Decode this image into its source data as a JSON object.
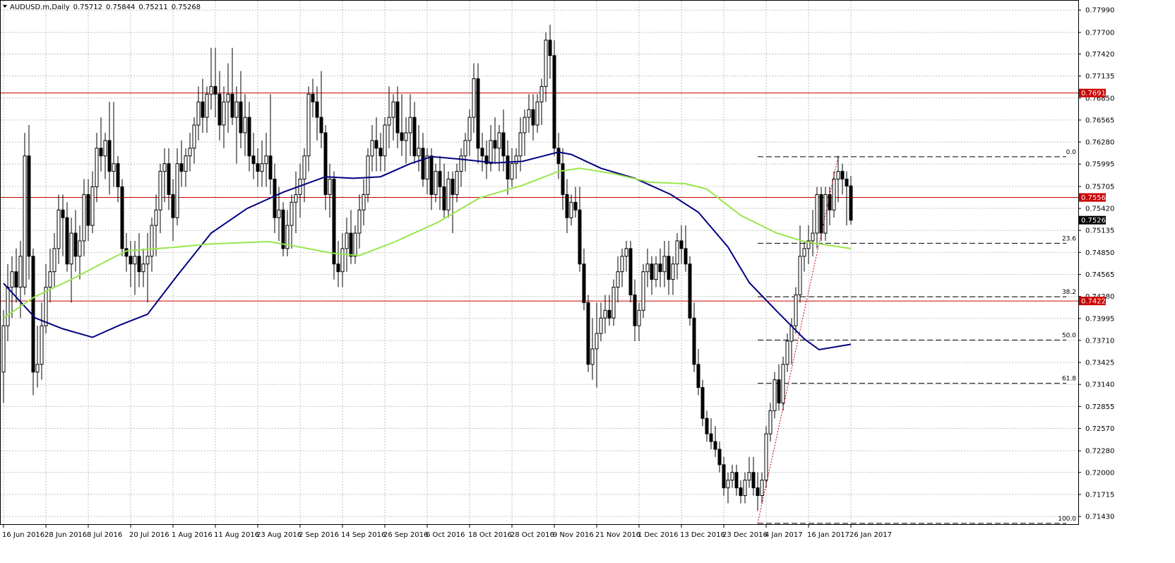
{
  "chart_data": {
    "type": "candlestick",
    "title": "AUDUSD.m,Daily",
    "categories": [
      "16 Jun 2016",
      null,
      null,
      null,
      null,
      null,
      null,
      null,
      null,
      null,
      "28 Jun 2016",
      null,
      null,
      null,
      null,
      null,
      null,
      null,
      null,
      null,
      "8 Jul 2016",
      null,
      null,
      null,
      null,
      null,
      null,
      null,
      null,
      null,
      "20 Jul 2016",
      null,
      null,
      null,
      null,
      null,
      null,
      null,
      null,
      null,
      "1 Aug 2016",
      null,
      null,
      null,
      null,
      null,
      null,
      null,
      null,
      null,
      "11 Aug 2016",
      null,
      null,
      null,
      null,
      null,
      null,
      null,
      null,
      null,
      "23 Aug 2016",
      null,
      null,
      null,
      null,
      null,
      null,
      null,
      null,
      null,
      "2 Sep 2016",
      null,
      null,
      null,
      null,
      null,
      null,
      null,
      null,
      null,
      "14 Sep 2016",
      null,
      null,
      null,
      null,
      null,
      null,
      null,
      null,
      null,
      "26 Sep 2016",
      null,
      null,
      null,
      null,
      null,
      null,
      null,
      null,
      null,
      "6 Oct 2016",
      null,
      null,
      null,
      null,
      null,
      null,
      null,
      null,
      null,
      "18 Oct 2016",
      null,
      null,
      null,
      null,
      null,
      null,
      null,
      null,
      null,
      "28 Oct 2016",
      null,
      null,
      null,
      null,
      null,
      null,
      null,
      null,
      null,
      "9 Nov 2016",
      null,
      null,
      null,
      null,
      null,
      null,
      null,
      null,
      null,
      "21 Nov 2016",
      null,
      null,
      null,
      null,
      null,
      null,
      null,
      null,
      null,
      "1 Dec 2016",
      null,
      null,
      null,
      null,
      null,
      null,
      null,
      null,
      null,
      "13 Dec 2016",
      null,
      null,
      null,
      null,
      null,
      null,
      null,
      null,
      null,
      "23 Dec 2016",
      null,
      null,
      null,
      null,
      null,
      null,
      null,
      null,
      null,
      "4 Jan 2017",
      null,
      null,
      null,
      null,
      null,
      null,
      null,
      null,
      null,
      "16 Jan 2017",
      null,
      null,
      null,
      null,
      null,
      null,
      null,
      null,
      null,
      "26 Jan 2017"
    ],
    "open": [
      0.733,
      0.739,
      0.744,
      0.746,
      0.744,
      0.744,
      0.761,
      0.748,
      0.733,
      0.734,
      0.739,
      0.744,
      0.746,
      0.749,
      0.754,
      0.753,
      0.747,
      0.751,
      0.748,
      0.75,
      0.756,
      0.752,
      0.757,
      0.762,
      0.761,
      0.763,
      0.759,
      0.76,
      0.757,
      0.749,
      0.748,
      0.747,
      0.748,
      0.746,
      0.747,
      0.748,
      0.752,
      0.754,
      0.759,
      0.76,
      0.756,
      0.753,
      0.76,
      0.759,
      0.761,
      0.762,
      0.765,
      0.768,
      0.766,
      0.769,
      0.77,
      0.769,
      0.765,
      0.768,
      0.769,
      0.766,
      0.768,
      0.764,
      0.766,
      0.761,
      0.76,
      0.759,
      0.76,
      0.761,
      0.758,
      0.753,
      0.754,
      0.749,
      0.752,
      0.755,
      0.756,
      0.758,
      0.761,
      0.769,
      0.768,
      0.766,
      0.764,
      0.756,
      0.758,
      0.747,
      0.746,
      0.749,
      0.751,
      0.748,
      0.751,
      0.754,
      0.756,
      0.761,
      0.763,
      0.762,
      0.761,
      0.765,
      0.766,
      0.768,
      0.764,
      0.763,
      0.764,
      0.766,
      0.761,
      0.762,
      0.758,
      0.761,
      0.756,
      0.759,
      0.757,
      0.754,
      0.758,
      0.756,
      0.759,
      0.761,
      0.763,
      0.766,
      0.771,
      0.762,
      0.761,
      0.76,
      0.763,
      0.762,
      0.764,
      0.761,
      0.758,
      0.76,
      0.761,
      0.764,
      0.766,
      0.767,
      0.765,
      0.768,
      0.77,
      0.776,
      0.774,
      0.762,
      0.76,
      0.756,
      0.753,
      0.755,
      0.754,
      0.747,
      0.742,
      0.734,
      0.736,
      0.738,
      0.74,
      0.741,
      0.74,
      0.744,
      0.746,
      0.748,
      0.749,
      0.743,
      0.739,
      0.741,
      0.746,
      0.747,
      0.745,
      0.747,
      0.746,
      0.748,
      0.745,
      0.747,
      0.75,
      0.749,
      0.747,
      0.74,
      0.734,
      0.731,
      0.727,
      0.725,
      0.724,
      0.723,
      0.721,
      0.718,
      0.719,
      0.72,
      0.718,
      0.717,
      0.719,
      0.72,
      0.718,
      0.717,
      0.719,
      0.725,
      0.728,
      0.732,
      0.729,
      0.734,
      0.737,
      0.739,
      0.743,
      0.748,
      0.749,
      0.75,
      0.751,
      0.756,
      0.751,
      0.756,
      0.754,
      0.758,
      0.759,
      0.758,
      0.75712
    ],
    "high": [
      0.741,
      0.747,
      0.748,
      0.749,
      0.75,
      0.764,
      0.765,
      0.749,
      0.739,
      0.742,
      0.747,
      0.749,
      0.751,
      0.756,
      0.756,
      0.755,
      0.753,
      0.754,
      0.752,
      0.758,
      0.758,
      0.759,
      0.764,
      0.766,
      0.764,
      0.768,
      0.768,
      0.761,
      0.758,
      0.751,
      0.75,
      0.75,
      0.751,
      0.749,
      0.751,
      0.753,
      0.756,
      0.76,
      0.762,
      0.762,
      0.758,
      0.762,
      0.763,
      0.762,
      0.764,
      0.766,
      0.77,
      0.771,
      0.77,
      0.775,
      0.775,
      0.772,
      0.77,
      0.773,
      0.775,
      0.77,
      0.772,
      0.769,
      0.768,
      0.764,
      0.762,
      0.763,
      0.764,
      0.769,
      0.76,
      0.757,
      0.755,
      0.754,
      0.756,
      0.759,
      0.76,
      0.762,
      0.77,
      0.771,
      0.77,
      0.772,
      0.765,
      0.76,
      0.759,
      0.75,
      0.751,
      0.753,
      0.754,
      0.752,
      0.756,
      0.758,
      0.762,
      0.765,
      0.766,
      0.764,
      0.766,
      0.77,
      0.769,
      0.77,
      0.769,
      0.766,
      0.769,
      0.768,
      0.765,
      0.764,
      0.762,
      0.762,
      0.76,
      0.761,
      0.76,
      0.759,
      0.759,
      0.76,
      0.762,
      0.764,
      0.767,
      0.773,
      0.773,
      0.764,
      0.763,
      0.765,
      0.766,
      0.765,
      0.767,
      0.763,
      0.762,
      0.762,
      0.766,
      0.767,
      0.769,
      0.769,
      0.769,
      0.771,
      0.777,
      0.778,
      0.776,
      0.764,
      0.762,
      0.758,
      0.756,
      0.757,
      0.757,
      0.749,
      0.743,
      0.74,
      0.742,
      0.742,
      0.743,
      0.743,
      0.745,
      0.748,
      0.749,
      0.75,
      0.75,
      0.745,
      0.742,
      0.747,
      0.749,
      0.748,
      0.748,
      0.749,
      0.75,
      0.75,
      0.748,
      0.751,
      0.752,
      0.752,
      0.748,
      0.742,
      0.736,
      0.732,
      0.728,
      0.727,
      0.726,
      0.724,
      0.722,
      0.72,
      0.721,
      0.721,
      0.719,
      0.72,
      0.722,
      0.722,
      0.72,
      0.72,
      0.726,
      0.729,
      0.733,
      0.734,
      0.735,
      0.738,
      0.74,
      0.744,
      0.752,
      0.75,
      0.752,
      0.754,
      0.757,
      0.757,
      0.757,
      0.757,
      0.759,
      0.761,
      0.76,
      0.759,
      0.75844
    ],
    "low": [
      0.729,
      0.737,
      0.74,
      0.742,
      0.74,
      0.743,
      0.745,
      0.73,
      0.731,
      0.732,
      0.738,
      0.742,
      0.744,
      0.747,
      0.748,
      0.746,
      0.742,
      0.746,
      0.745,
      0.748,
      0.75,
      0.751,
      0.755,
      0.759,
      0.758,
      0.756,
      0.757,
      0.755,
      0.748,
      0.746,
      0.744,
      0.743,
      0.744,
      0.744,
      0.742,
      0.746,
      0.748,
      0.751,
      0.755,
      0.754,
      0.75,
      0.752,
      0.757,
      0.757,
      0.759,
      0.76,
      0.763,
      0.764,
      0.764,
      0.767,
      0.766,
      0.763,
      0.762,
      0.764,
      0.765,
      0.76,
      0.762,
      0.761,
      0.759,
      0.758,
      0.757,
      0.757,
      0.757,
      0.756,
      0.751,
      0.75,
      0.748,
      0.748,
      0.749,
      0.751,
      0.753,
      0.755,
      0.759,
      0.766,
      0.763,
      0.762,
      0.754,
      0.753,
      0.745,
      0.744,
      0.744,
      0.746,
      0.747,
      0.747,
      0.749,
      0.752,
      0.755,
      0.759,
      0.759,
      0.759,
      0.759,
      0.762,
      0.763,
      0.762,
      0.761,
      0.76,
      0.761,
      0.76,
      0.759,
      0.757,
      0.756,
      0.754,
      0.755,
      0.754,
      0.753,
      0.753,
      0.751,
      0.755,
      0.757,
      0.759,
      0.761,
      0.764,
      0.76,
      0.759,
      0.758,
      0.759,
      0.76,
      0.759,
      0.759,
      0.756,
      0.757,
      0.758,
      0.759,
      0.761,
      0.764,
      0.763,
      0.764,
      0.765,
      0.768,
      0.771,
      0.761,
      0.758,
      0.754,
      0.751,
      0.752,
      0.753,
      0.746,
      0.741,
      0.733,
      0.732,
      0.731,
      0.737,
      0.738,
      0.739,
      0.739,
      0.742,
      0.744,
      0.746,
      0.742,
      0.737,
      0.737,
      0.74,
      0.744,
      0.743,
      0.744,
      0.744,
      0.744,
      0.743,
      0.743,
      0.745,
      0.747,
      0.746,
      0.739,
      0.733,
      0.73,
      0.726,
      0.724,
      0.723,
      0.722,
      0.72,
      0.717,
      0.716,
      0.718,
      0.717,
      0.716,
      0.716,
      0.718,
      0.717,
      0.715,
      0.716,
      0.718,
      0.724,
      0.727,
      0.728,
      0.728,
      0.733,
      0.734,
      0.738,
      0.742,
      0.746,
      0.747,
      0.748,
      0.749,
      0.75,
      0.75,
      0.752,
      0.753,
      0.755,
      0.756,
      0.752,
      0.75211
    ],
    "close": [
      0.739,
      0.744,
      0.746,
      0.744,
      0.748,
      0.761,
      0.748,
      0.733,
      0.734,
      0.739,
      0.744,
      0.746,
      0.749,
      0.754,
      0.753,
      0.747,
      0.751,
      0.748,
      0.75,
      0.756,
      0.752,
      0.757,
      0.762,
      0.761,
      0.763,
      0.759,
      0.76,
      0.757,
      0.749,
      0.748,
      0.747,
      0.748,
      0.746,
      0.747,
      0.748,
      0.752,
      0.754,
      0.759,
      0.76,
      0.756,
      0.753,
      0.76,
      0.759,
      0.761,
      0.762,
      0.765,
      0.768,
      0.766,
      0.769,
      0.77,
      0.769,
      0.765,
      0.768,
      0.769,
      0.766,
      0.768,
      0.764,
      0.766,
      0.761,
      0.76,
      0.759,
      0.76,
      0.761,
      0.758,
      0.753,
      0.754,
      0.749,
      0.752,
      0.755,
      0.756,
      0.758,
      0.761,
      0.769,
      0.768,
      0.766,
      0.764,
      0.756,
      0.758,
      0.747,
      0.746,
      0.749,
      0.751,
      0.748,
      0.751,
      0.754,
      0.756,
      0.761,
      0.763,
      0.762,
      0.761,
      0.765,
      0.766,
      0.768,
      0.764,
      0.763,
      0.764,
      0.766,
      0.761,
      0.762,
      0.758,
      0.761,
      0.756,
      0.759,
      0.757,
      0.754,
      0.758,
      0.756,
      0.759,
      0.761,
      0.763,
      0.766,
      0.771,
      0.762,
      0.761,
      0.76,
      0.763,
      0.762,
      0.764,
      0.761,
      0.758,
      0.76,
      0.761,
      0.764,
      0.766,
      0.767,
      0.765,
      0.768,
      0.77,
      0.776,
      0.774,
      0.762,
      0.76,
      0.756,
      0.753,
      0.755,
      0.754,
      0.747,
      0.742,
      0.734,
      0.736,
      0.738,
      0.74,
      0.741,
      0.74,
      0.744,
      0.746,
      0.748,
      0.749,
      0.743,
      0.739,
      0.741,
      0.746,
      0.747,
      0.745,
      0.747,
      0.746,
      0.748,
      0.745,
      0.747,
      0.75,
      0.749,
      0.747,
      0.74,
      0.734,
      0.731,
      0.727,
      0.725,
      0.724,
      0.723,
      0.721,
      0.718,
      0.719,
      0.72,
      0.718,
      0.717,
      0.719,
      0.72,
      0.718,
      0.717,
      0.719,
      0.725,
      0.728,
      0.732,
      0.729,
      0.734,
      0.737,
      0.739,
      0.743,
      0.748,
      0.749,
      0.75,
      0.751,
      0.756,
      0.751,
      0.756,
      0.754,
      0.758,
      0.759,
      0.758,
      0.7571,
      0.75268
    ],
    "ylim": [
      0.7133,
      0.7812
    ],
    "yticks": [
      {
        "value": 0.7799,
        "label": "0.77990"
      },
      {
        "value": 0.777,
        "label": "0.77700"
      },
      {
        "value": 0.7742,
        "label": "0.77420"
      },
      0.77135,
      {
        "value": 0.7685,
        "label": "0.76850"
      },
      0.76565,
      {
        "value": 0.7628,
        "label": "0.76280"
      },
      0.75995,
      0.75705,
      {
        "value": 0.7542,
        "label": "0.75420"
      },
      0.75135,
      {
        "value": 0.7485,
        "label": "0.74850"
      },
      0.74565,
      {
        "value": 0.7428,
        "label": "0.74280"
      },
      0.73995,
      {
        "value": 0.7371,
        "label": "0.73710"
      },
      0.73425,
      {
        "value": 0.7314,
        "label": "0.73140"
      },
      0.72855,
      {
        "value": 0.7257,
        "label": "0.72570"
      },
      {
        "value": 0.7228,
        "label": "0.72280"
      },
      {
        "value": 0.72,
        "label": "0.72000"
      },
      0.71715,
      {
        "value": 0.7143,
        "label": "0.71430"
      }
    ],
    "grid": true,
    "up_color": "#ffffff",
    "down_color": "#000000",
    "moving_averages": [
      {
        "color": "#000080",
        "x": [
          0,
          7.5,
          14,
          21,
          27.5,
          34,
          41,
          49,
          57.5,
          66,
          76,
          82.5,
          89,
          96,
          101,
          107.5,
          116,
          122.5,
          131,
          134,
          141,
          149,
          157.5,
          164,
          171,
          176,
          182.5,
          189,
          192.5,
          200
        ],
        "values": [
          0.7445,
          0.74,
          0.7386,
          0.7375,
          0.7391,
          0.7405,
          0.7455,
          0.751,
          0.7542,
          0.7563,
          0.7583,
          0.7581,
          0.7583,
          0.76,
          0.7609,
          0.7606,
          0.7601,
          0.7603,
          0.7615,
          0.7612,
          0.7594,
          0.7581,
          0.756,
          0.7537,
          0.7492,
          0.7446,
          0.7409,
          0.7373,
          0.7359,
          0.7366
        ]
      },
      {
        "color": "#99e64d",
        "x": [
          0,
          7.5,
          16,
          24,
          29,
          41,
          49,
          62.5,
          69,
          77.5,
          84,
          92.5,
          102.5,
          112.5,
          122.5,
          131,
          136,
          144,
          152.5,
          161,
          166,
          174,
          182.5,
          189,
          200
        ],
        "values": [
          0.74,
          0.7428,
          0.745,
          0.7473,
          0.7487,
          0.7492,
          0.7496,
          0.7499,
          0.7493,
          0.7484,
          0.7481,
          0.7499,
          0.7524,
          0.7556,
          0.7572,
          0.759,
          0.7594,
          0.7587,
          0.7576,
          0.7574,
          0.7567,
          0.7533,
          0.751,
          0.7499,
          0.749
        ]
      }
    ],
    "levels": [
      {
        "value": 0.76915,
        "color": "#cc0000"
      },
      {
        "value": 0.75562,
        "color": "#cc0000"
      },
      {
        "value": 0.74221,
        "color": "#cc0000"
      }
    ],
    "fibonacci": {
      "low": 0.7134,
      "high": 0.7609,
      "start": 178,
      "end": 197,
      "color": "#000000",
      "trend_color": "#cc0000",
      "levels": [
        {
          "value": 0,
          "label": "0.0"
        },
        23.6,
        38.2,
        {
          "value": 50,
          "label": "50.0"
        },
        61.8,
        {
          "value": 100,
          "label": "100.0"
        }
      ]
    }
  }
}
